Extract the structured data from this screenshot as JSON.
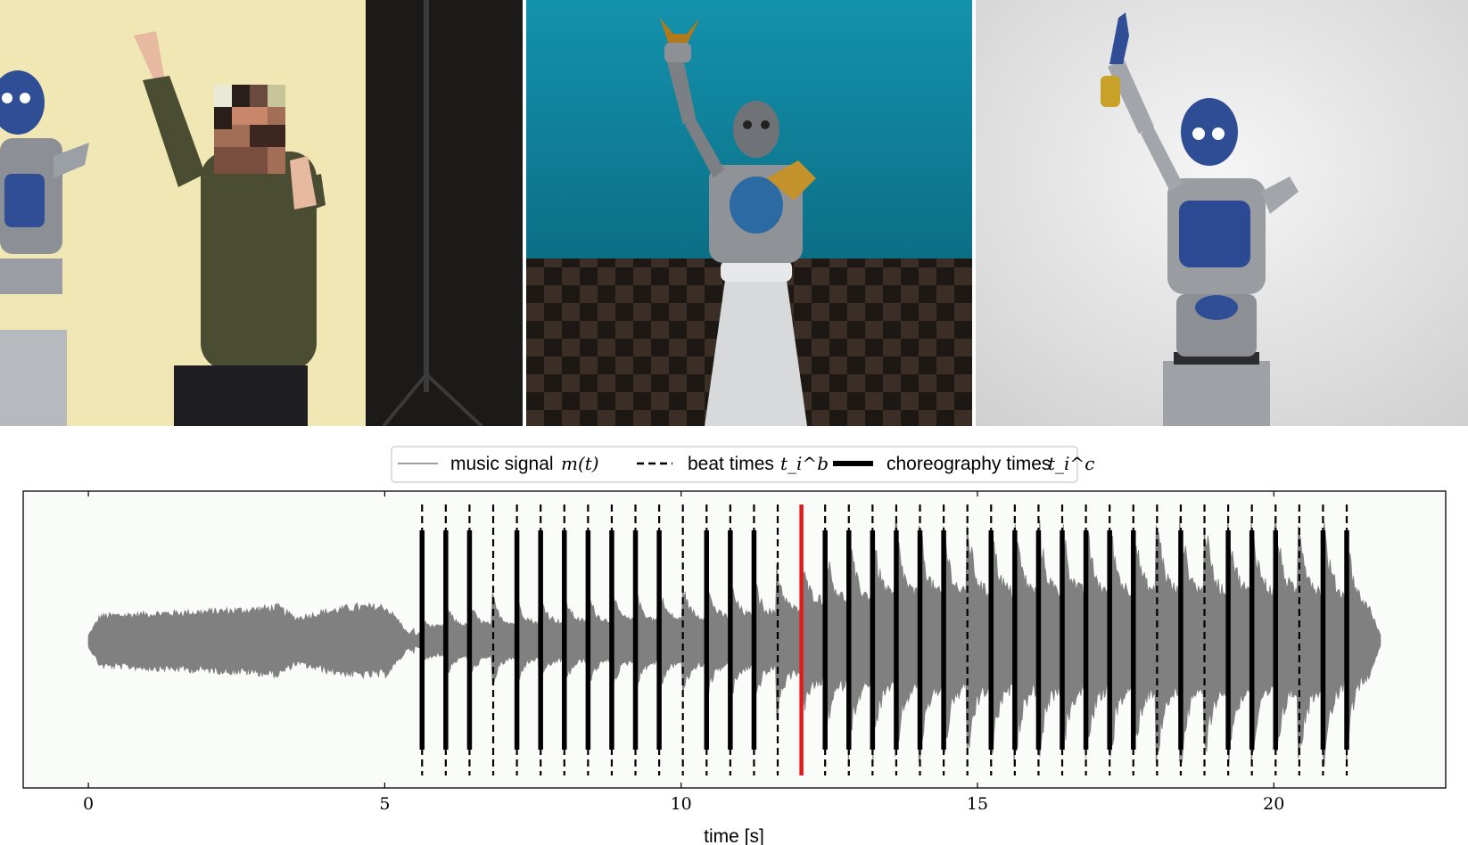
{
  "photos": [
    {
      "name": "human-demonstrator-photo"
    },
    {
      "name": "robot-simulation-render"
    },
    {
      "name": "real-robot-photo"
    }
  ],
  "chart_data": {
    "type": "line",
    "xlabel": "time [s]",
    "ylabel": "",
    "xlim": [
      -1.1,
      22.9
    ],
    "xticks": [
      0,
      5,
      10,
      15,
      20
    ],
    "xtick_labels": [
      "0",
      "5",
      "10",
      "15",
      "20"
    ],
    "grid": false,
    "legend_position": "top-center",
    "legend": [
      {
        "label": "music signal",
        "math": "m(t)",
        "style": "thin gray line",
        "color": "#808080"
      },
      {
        "label": "beat times",
        "math": "t_i^b",
        "style": "dashed black line",
        "color": "#000000"
      },
      {
        "label": "choreography times",
        "math": "t_i^c",
        "style": "thick black line",
        "color": "#000000"
      }
    ],
    "music_signal": {
      "start": 0.0,
      "end": 21.8,
      "envelope": [
        [
          0.0,
          0.05
        ],
        [
          0.2,
          0.22
        ],
        [
          1.0,
          0.24
        ],
        [
          2.0,
          0.26
        ],
        [
          2.8,
          0.28
        ],
        [
          3.2,
          0.3
        ],
        [
          3.5,
          0.2
        ],
        [
          4.0,
          0.26
        ],
        [
          4.5,
          0.3
        ],
        [
          5.0,
          0.3
        ],
        [
          5.2,
          0.2
        ],
        [
          5.4,
          0.06
        ],
        [
          5.6,
          0.15
        ],
        [
          6.0,
          0.28
        ],
        [
          8.0,
          0.35
        ],
        [
          10.0,
          0.4
        ],
        [
          11.5,
          0.5
        ],
        [
          12.0,
          0.58
        ],
        [
          12.3,
          0.75
        ],
        [
          13.5,
          0.85
        ],
        [
          15.0,
          0.9
        ],
        [
          17.0,
          0.92
        ],
        [
          19.0,
          0.93
        ],
        [
          21.0,
          0.92
        ],
        [
          21.6,
          0.65
        ],
        [
          21.8,
          0.1
        ]
      ],
      "color": "#808080"
    },
    "beat_times": [
      5.63,
      6.03,
      6.43,
      6.83,
      7.23,
      7.63,
      8.03,
      8.43,
      8.83,
      9.23,
      9.63,
      10.03,
      10.43,
      10.83,
      11.23,
      11.63,
      12.03,
      12.43,
      12.83,
      13.23,
      13.63,
      14.03,
      14.43,
      14.83,
      15.23,
      15.63,
      16.03,
      16.43,
      16.83,
      17.23,
      17.63,
      18.03,
      18.43,
      18.83,
      19.23,
      19.63,
      20.03,
      20.43,
      20.83,
      21.23
    ],
    "choreography_times": [
      5.63,
      6.03,
      6.43,
      7.23,
      7.63,
      8.03,
      8.43,
      8.83,
      9.23,
      9.63,
      10.43,
      10.83,
      11.23,
      12.43,
      12.83,
      13.23,
      13.63,
      14.03,
      14.43,
      15.23,
      15.63,
      16.03,
      16.43,
      16.83,
      17.23,
      17.63,
      18.43,
      19.23,
      19.63,
      20.03,
      20.83,
      21.23
    ],
    "current_time": 12.03,
    "current_time_color": "#e31a1c"
  }
}
